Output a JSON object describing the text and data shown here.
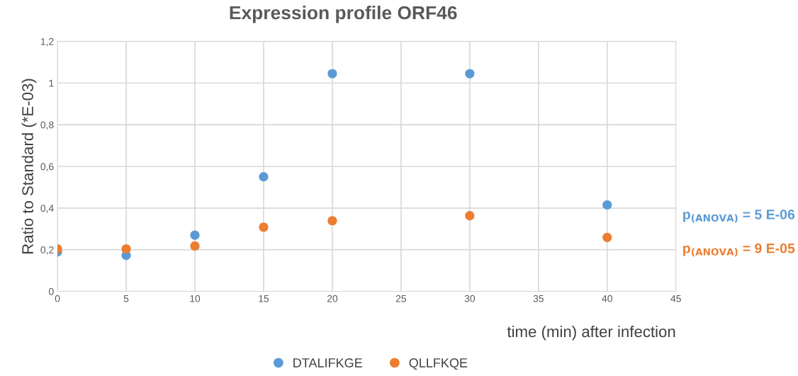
{
  "chart_data": {
    "type": "scatter",
    "title": "Expression profile ORF46",
    "xlabel": "time (min) after infection",
    "ylabel": "Ratio to Standard (*E-03)",
    "x": [
      0,
      5,
      10,
      15,
      20,
      30,
      40
    ],
    "series": [
      {
        "name": "DTALIFKGE",
        "color": "#5b9bd5",
        "values": [
          0.19,
          0.173,
          0.27,
          0.55,
          1.045,
          1.045,
          0.415
        ]
      },
      {
        "name": "QLLFKQE",
        "color": "#ed7d31",
        "values": [
          0.204,
          0.204,
          0.218,
          0.308,
          0.339,
          0.363,
          0.259
        ]
      }
    ],
    "xlim": [
      0,
      45
    ],
    "xticks": [
      0,
      5,
      10,
      15,
      20,
      25,
      30,
      35,
      40,
      45
    ],
    "ylim": [
      0,
      1.2
    ],
    "yticks": [
      0,
      {
        "value": 0.2,
        "label": "0,2"
      },
      {
        "value": 0.4,
        "label": "0,4"
      },
      {
        "value": 0.6,
        "label": "0,6"
      },
      {
        "value": 0.8,
        "label": "0,8"
      },
      1,
      {
        "value": 1.2,
        "label": "1,2"
      }
    ],
    "annotations": [
      "p$_{(ANOVA)}$ = 5 E-06",
      "p$_{(ANOVA)}$ = 9 E-05"
    ],
    "grid": true,
    "legend": "bottom",
    "marker": "circle"
  }
}
